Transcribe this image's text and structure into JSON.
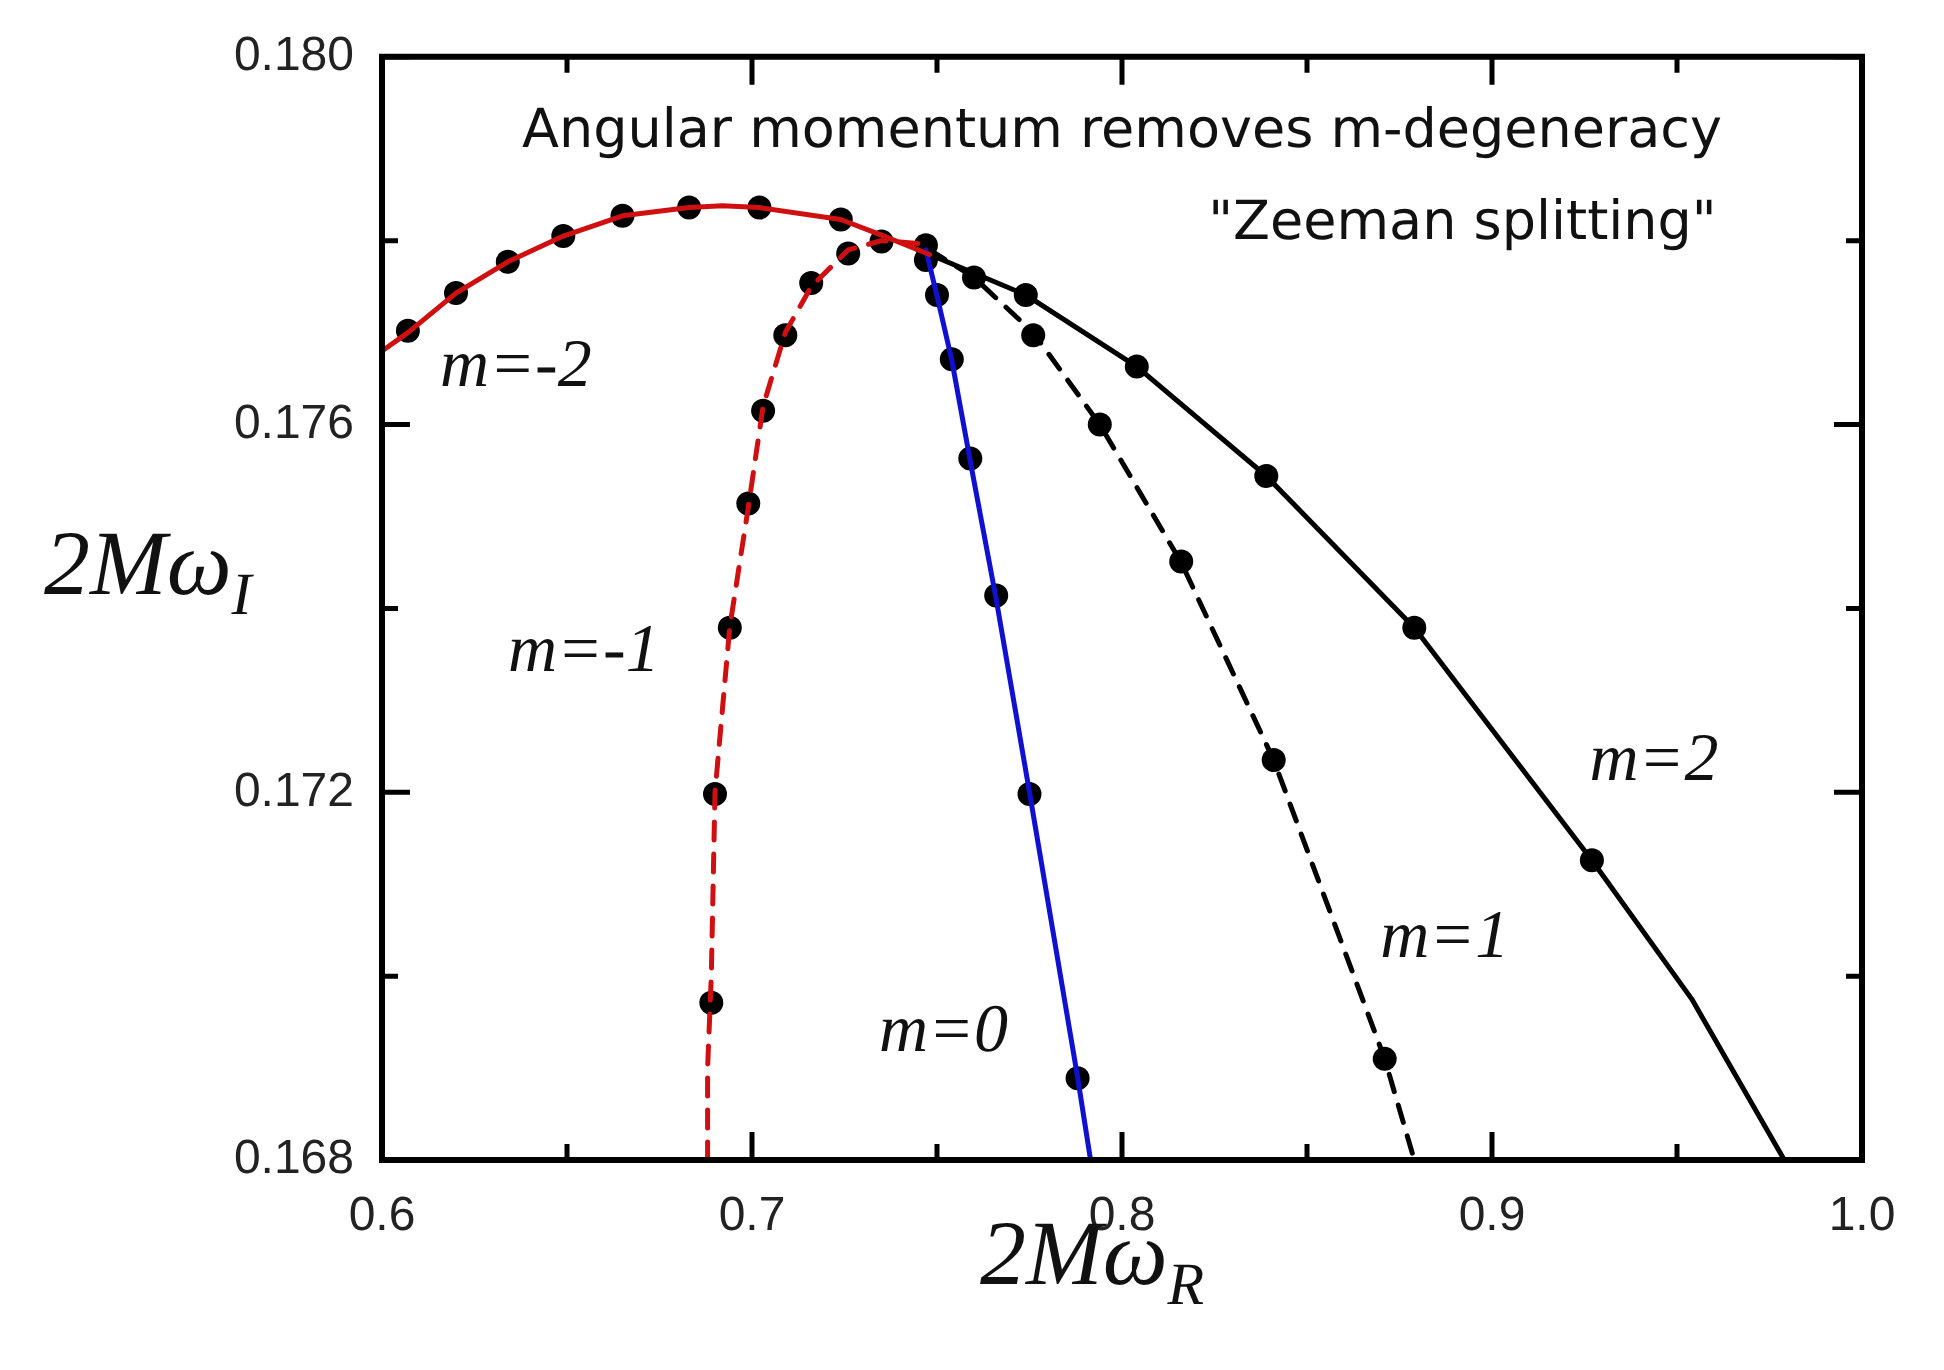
{
  "chart_data": {
    "type": "line",
    "xlabel": "2Mω$_{R}$",
    "ylabel": "2Mω$_{I}$",
    "xlim": [
      0.6,
      1.0
    ],
    "xticks": [
      0.6,
      {
        "value": 0.65,
        "label": null
      },
      0.7,
      {
        "value": 0.75,
        "label": null
      },
      0.8,
      {
        "value": 0.85,
        "label": null
      },
      0.9,
      {
        "value": 0.95,
        "label": null
      },
      {
        "value": 1,
        "label": "1.0"
      }
    ],
    "ylim": [
      0.168,
      0.18
    ],
    "yticks": [
      {
        "value": 0.168,
        "label": "0.168"
      },
      {
        "value": 0.17,
        "label": null
      },
      {
        "value": 0.172,
        "label": "0.172"
      },
      {
        "value": 0.174,
        "label": null
      },
      {
        "value": 0.176,
        "label": "0.176"
      },
      {
        "value": 0.178,
        "label": null
      },
      {
        "value": 0.18,
        "label": "0.180"
      }
    ],
    "series": [
      {
        "type": "line",
        "name": "m=-2",
        "color": "#d01010",
        "line_style": "solid",
        "marker": "none",
        "x": [
          0.6,
          0.607,
          0.62,
          0.634,
          0.649,
          0.665,
          0.683,
          0.692,
          0.702,
          0.724,
          0.735,
          0.748
        ],
        "values": [
          0.1768,
          0.177,
          0.17743,
          0.17777,
          0.17805,
          0.17827,
          0.17836,
          0.17838,
          0.17836,
          0.17823,
          0.17806,
          0.17785
        ]
      },
      {
        "type": "line",
        "name": "m=-1",
        "color": "#d01010",
        "line_style": "dashed",
        "marker": "none",
        "x": [
          0.688,
          0.688,
          0.689,
          0.69,
          0.694,
          0.699,
          0.703,
          0.709,
          0.716,
          0.726,
          0.735,
          0.745
        ],
        "values": [
          0.168,
          0.169,
          0.17,
          0.172,
          0.1738,
          0.1751,
          0.1762,
          0.177,
          0.1775,
          0.1779,
          0.178,
          0.17797
        ]
      },
      {
        "type": "line",
        "name": "m=0",
        "color": "#1010d0",
        "line_style": "solid",
        "marker": "none",
        "x": [
          0.747,
          0.75,
          0.754,
          0.759,
          0.766,
          0.775,
          0.788,
          0.7915
        ],
        "values": [
          0.1779,
          0.1774,
          0.1767,
          0.1756,
          0.1741,
          0.172,
          0.1689,
          0.168
        ]
      },
      {
        "type": "line",
        "name": "m=1",
        "color": "#000000",
        "line_style": "dashed",
        "marker": "none",
        "x": [
          0.748,
          0.76,
          0.776,
          0.794,
          0.816,
          0.841,
          0.871,
          0.879
        ],
        "values": [
          0.1779,
          0.1776,
          0.177,
          0.176,
          0.1745,
          0.17235,
          0.1691,
          0.168
        ]
      },
      {
        "type": "line",
        "name": "m=2",
        "color": "#000000",
        "line_style": "solid",
        "marker": "none",
        "x": [
          0.748,
          0.774,
          0.804,
          0.839,
          0.879,
          0.927,
          0.954,
          0.979
        ],
        "values": [
          0.17785,
          0.17741,
          0.17663,
          0.17544,
          0.17379,
          0.17126,
          0.16975,
          0.168
        ]
      },
      {
        "type": "scatter",
        "color": "#000000",
        "marker": "circle",
        "x": [
          0.607,
          0.62,
          0.634,
          0.649,
          0.665,
          0.683,
          0.702,
          0.724,
          0.735,
          0.747,
          0.689,
          0.69,
          0.694,
          0.699,
          0.703,
          0.709,
          0.716,
          0.726,
          0.747,
          0.75,
          0.754,
          0.759,
          0.766,
          0.775,
          0.788,
          0.76,
          0.776,
          0.794,
          0.816,
          0.841,
          0.871,
          0.774,
          0.804,
          0.839,
          0.879,
          0.927
        ],
        "values": [
          0.17702,
          0.17743,
          0.17777,
          0.17805,
          0.17827,
          0.17836,
          0.17836,
          0.17823,
          0.17799,
          0.17795,
          0.16971,
          0.17198,
          0.17379,
          0.17514,
          0.17615,
          0.17697,
          0.17754,
          0.17786,
          0.17779,
          0.17741,
          0.17671,
          0.17563,
          0.17414,
          0.17198,
          0.16889,
          0.1776,
          0.17697,
          0.176,
          0.17451,
          0.17235,
          0.1691,
          0.17741,
          0.17663,
          0.17544,
          0.17379,
          0.17126
        ]
      }
    ],
    "annotations": [
      "Angular momentum removes m-degeneracy",
      "\"Zeeman splitting\""
    ]
  }
}
